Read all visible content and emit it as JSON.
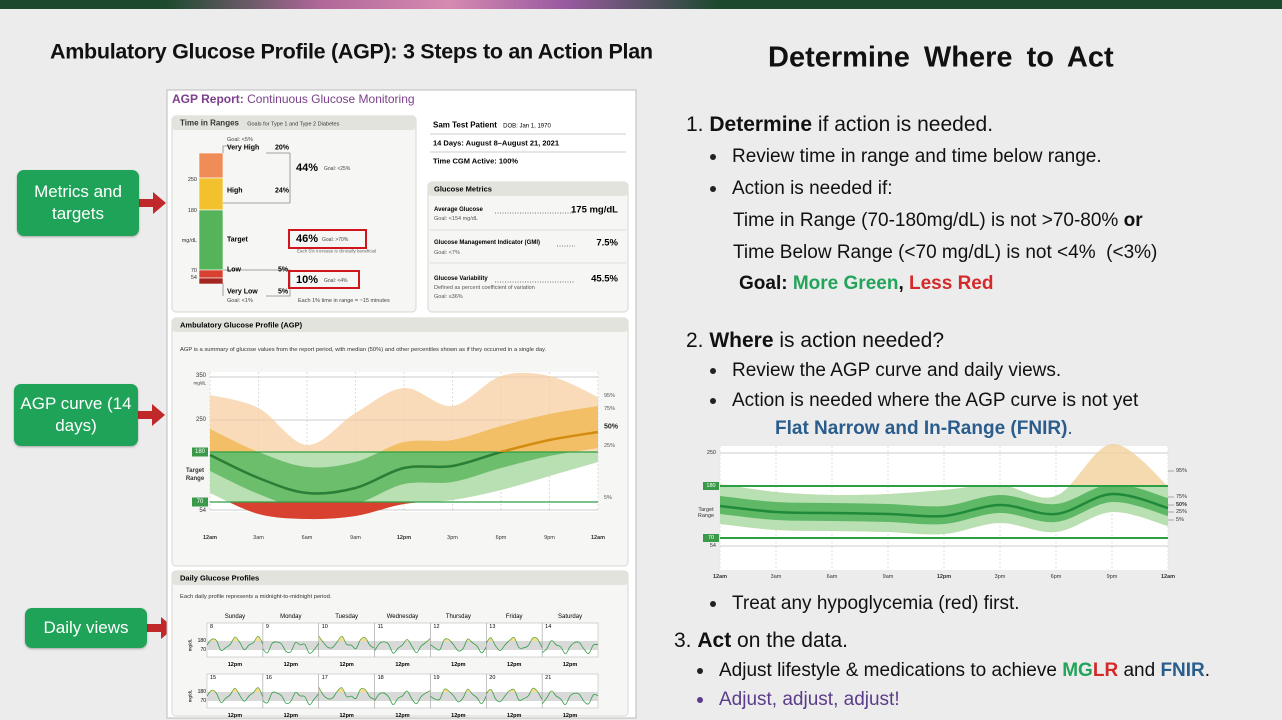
{
  "header": {
    "title": "Ambulatory Glucose Profile (AGP): 3 Steps to an Action Plan",
    "subtitle": "Determine Where to Act"
  },
  "callouts": [
    "Metrics and targets",
    "AGP curve (14 days)",
    "Daily views"
  ],
  "report": {
    "title": "AGP Report:",
    "subtitle": "Continuous Glucose Monitoring",
    "tir": {
      "title": "Time in Ranges",
      "note": "Goals for Type 1 and Type 2 Diabetes",
      "very_high_goal": "Goal: <5%",
      "very_high": "Very High",
      "very_high_pct": "20%",
      "high": "High",
      "high_pct": "24%",
      "high_total": "44%",
      "high_goal": "Goal: <25%",
      "target": "Target",
      "target_pct": "46%",
      "target_goal": "Goal: >70%",
      "target_note": "Each 5% increase is clinically beneficial",
      "low": "Low",
      "low_pct": "5%",
      "low_total": "10%",
      "low_goal": "Goal: <4%",
      "very_low": "Very Low",
      "very_low_pct": "5%",
      "very_low_goal": "Goal: <1%",
      "time_note": "Each 1% time in range = ~15 minutes",
      "axis": [
        "250",
        "180",
        "mg/dL",
        "70",
        "54"
      ]
    },
    "patient": {
      "name": "Sam Test Patient",
      "dob": "DOB: Jan 1, 1970",
      "period": "14 Days: August 8–August 21, 2021",
      "active": "Time CGM Active: 100%"
    },
    "metrics": {
      "title": "Glucose Metrics",
      "items": [
        {
          "name": "Average Glucose",
          "value": "175 mg/dL",
          "goal": "Goal: <154 mg/dL"
        },
        {
          "name": "Glucose Management Indicator (GMI)",
          "value": "7.5%",
          "goal": "Goal: <7%"
        },
        {
          "name": "Glucose Variability",
          "value": "45.5%",
          "definition": "Defined as percent coefficient of variation",
          "goal": "Goal: ≤36%"
        }
      ]
    },
    "agp": {
      "title": "Ambulatory Glucose Profile (AGP)",
      "description": "AGP is a summary of glucose values from the report period, with median (50%) and other percentiles shown as if they occurred in a single day.",
      "y_labels": [
        "350",
        "mg/dL",
        "250",
        "180",
        "Target Range",
        "70",
        "54"
      ],
      "percentiles": [
        "95%",
        "75%",
        "50%",
        "25%",
        "5%"
      ],
      "x_labels": [
        "12am",
        "3am",
        "6am",
        "9am",
        "12pm",
        "3pm",
        "6pm",
        "9pm",
        "12am"
      ]
    },
    "daily": {
      "title": "Daily Glucose Profiles",
      "description": "Each daily profile represents a midnight-to-midnight period.",
      "days": [
        "Sunday",
        "Monday",
        "Tuesday",
        "Wednesday",
        "Thursday",
        "Friday",
        "Saturday"
      ],
      "weeks": [
        [
          "8",
          "9",
          "10",
          "11",
          "12",
          "13",
          "14"
        ],
        [
          "15",
          "16",
          "17",
          "18",
          "19",
          "20",
          "21"
        ]
      ],
      "noon": "12pm",
      "unit": "mg/dL",
      "levels": [
        "180",
        "70"
      ]
    }
  },
  "steps": {
    "one": {
      "number": "1.",
      "keyword": "Determine",
      "rest": "if action is needed.",
      "bullets": [
        "Review time in range and time below range.",
        "Action is needed if:"
      ],
      "condition1": "Time in Range (70-180mg/dL) is not >70-80%",
      "connector": "or",
      "condition2": "Time Below Range (<70 mg/dL) is not <4%  (<3%)",
      "goal_label": "Goal:",
      "goal_green": "More Green",
      "goal_sep": ",",
      "goal_red": "Less Red"
    },
    "two": {
      "number": "2.",
      "keyword": "Where",
      "rest": "is action needed?",
      "bullets": [
        "Review the AGP curve and daily views.",
        "Action is needed where the AGP curve is not yet"
      ],
      "highlight": "Flat Narrow and In-Range (FNIR)",
      "highlight_end": ".",
      "after": "Treat any hypoglycemia (red) first."
    },
    "three": {
      "number": "3.",
      "keyword": "Act",
      "rest": "on the data.",
      "lead": "Adjust lifestyle & medications to achieve",
      "mg": "MG",
      "lr": "LR",
      "and": "and",
      "fnir": "FNIR",
      "end": ".",
      "last": "Adjust, adjust, adjust!"
    }
  },
  "fnir_chart": {
    "y_labels": [
      "250",
      "180",
      "Target Range",
      "70",
      "54"
    ],
    "percentiles": [
      "95%",
      "75%",
      "50%",
      "25%",
      "5%"
    ],
    "x_labels": [
      "12am",
      "3am",
      "6am",
      "9am",
      "12pm",
      "3pm",
      "6pm",
      "9pm",
      "12am"
    ]
  }
}
